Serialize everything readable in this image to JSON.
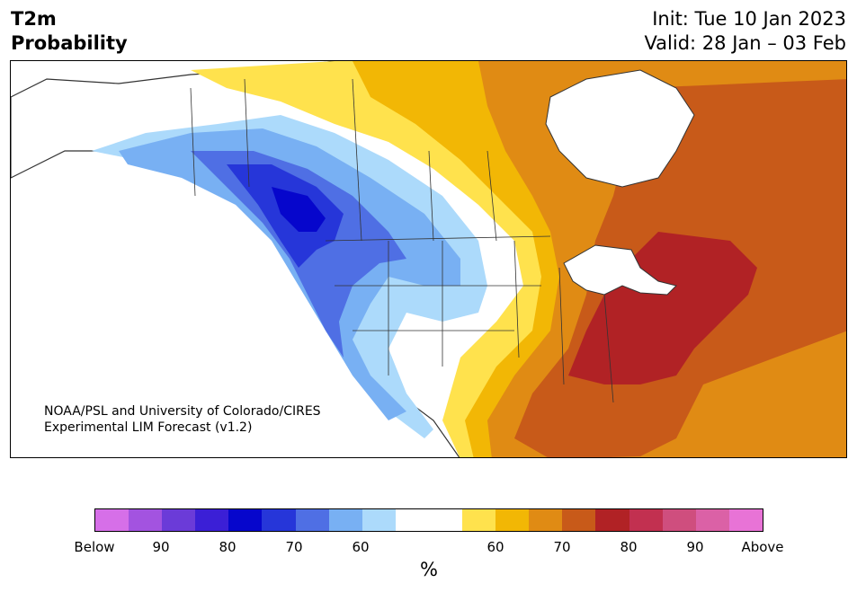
{
  "header": {
    "variable": "T2m",
    "product": "Probability",
    "init": "Init: Tue 10 Jan 2023",
    "valid": "Valid: 28 Jan – 03 Feb"
  },
  "credit": {
    "line1": "NOAA/PSL and University of Colorado/CIRES",
    "line2": "Experimental LIM Forecast (v1.2)"
  },
  "colorbar": {
    "unit": "%",
    "colors": [
      "#d66fe8",
      "#a353e0",
      "#6b3bd8",
      "#3b1fd6",
      "#0606cc",
      "#2636d9",
      "#4f6fe4",
      "#78b0f3",
      "#acdafb",
      "#ffffff",
      "#ffffff",
      "#ffe24d",
      "#f2b705",
      "#e08b14",
      "#c85a19",
      "#b12225",
      "#c23050",
      "#cf4e7e",
      "#db61a6",
      "#e873d6"
    ],
    "ticks": [
      "Below",
      "90",
      "80",
      "70",
      "60",
      "60",
      "70",
      "80",
      "90",
      "Above"
    ]
  },
  "map_colors": {
    "ocean": "#ffffff",
    "land_white": "#ffffff",
    "above_60": "#ffe24d",
    "above_65": "#f2b705",
    "above_70": "#e08b14",
    "above_75": "#c85a19",
    "above_80": "#b12225",
    "below_60": "#acdafb",
    "below_65": "#78b0f3",
    "below_70": "#4f6fe4",
    "below_75": "#2636d9",
    "below_80": "#0606cc",
    "border": "#333333"
  }
}
